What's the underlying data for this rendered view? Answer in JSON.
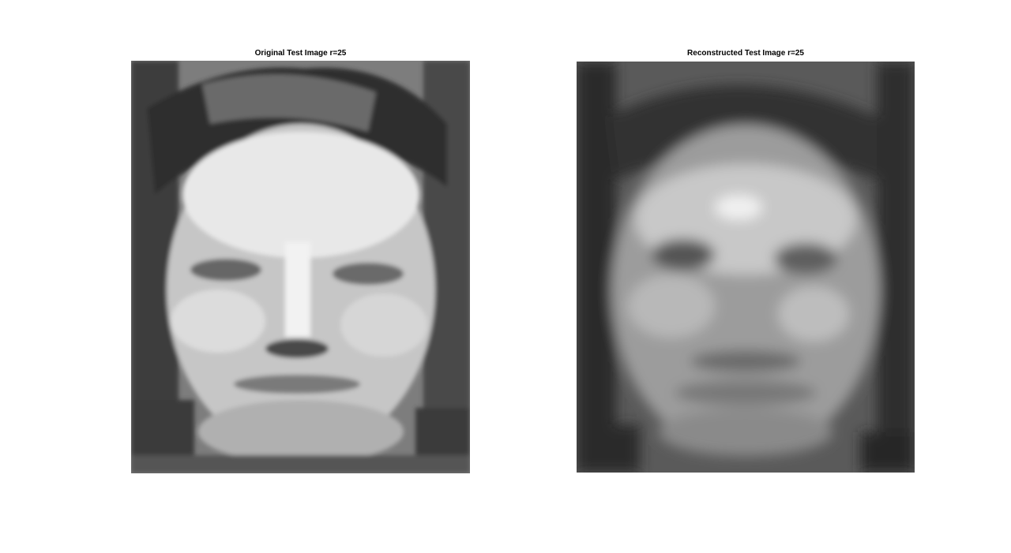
{
  "figure": {
    "panels": [
      {
        "title": "Original Test Image r=25",
        "image": "grayscale-face-original",
        "colormap": "gray"
      },
      {
        "title": "Reconstructed Test Image r=25",
        "image": "grayscale-face-reconstructed",
        "colormap": "gray"
      }
    ]
  }
}
